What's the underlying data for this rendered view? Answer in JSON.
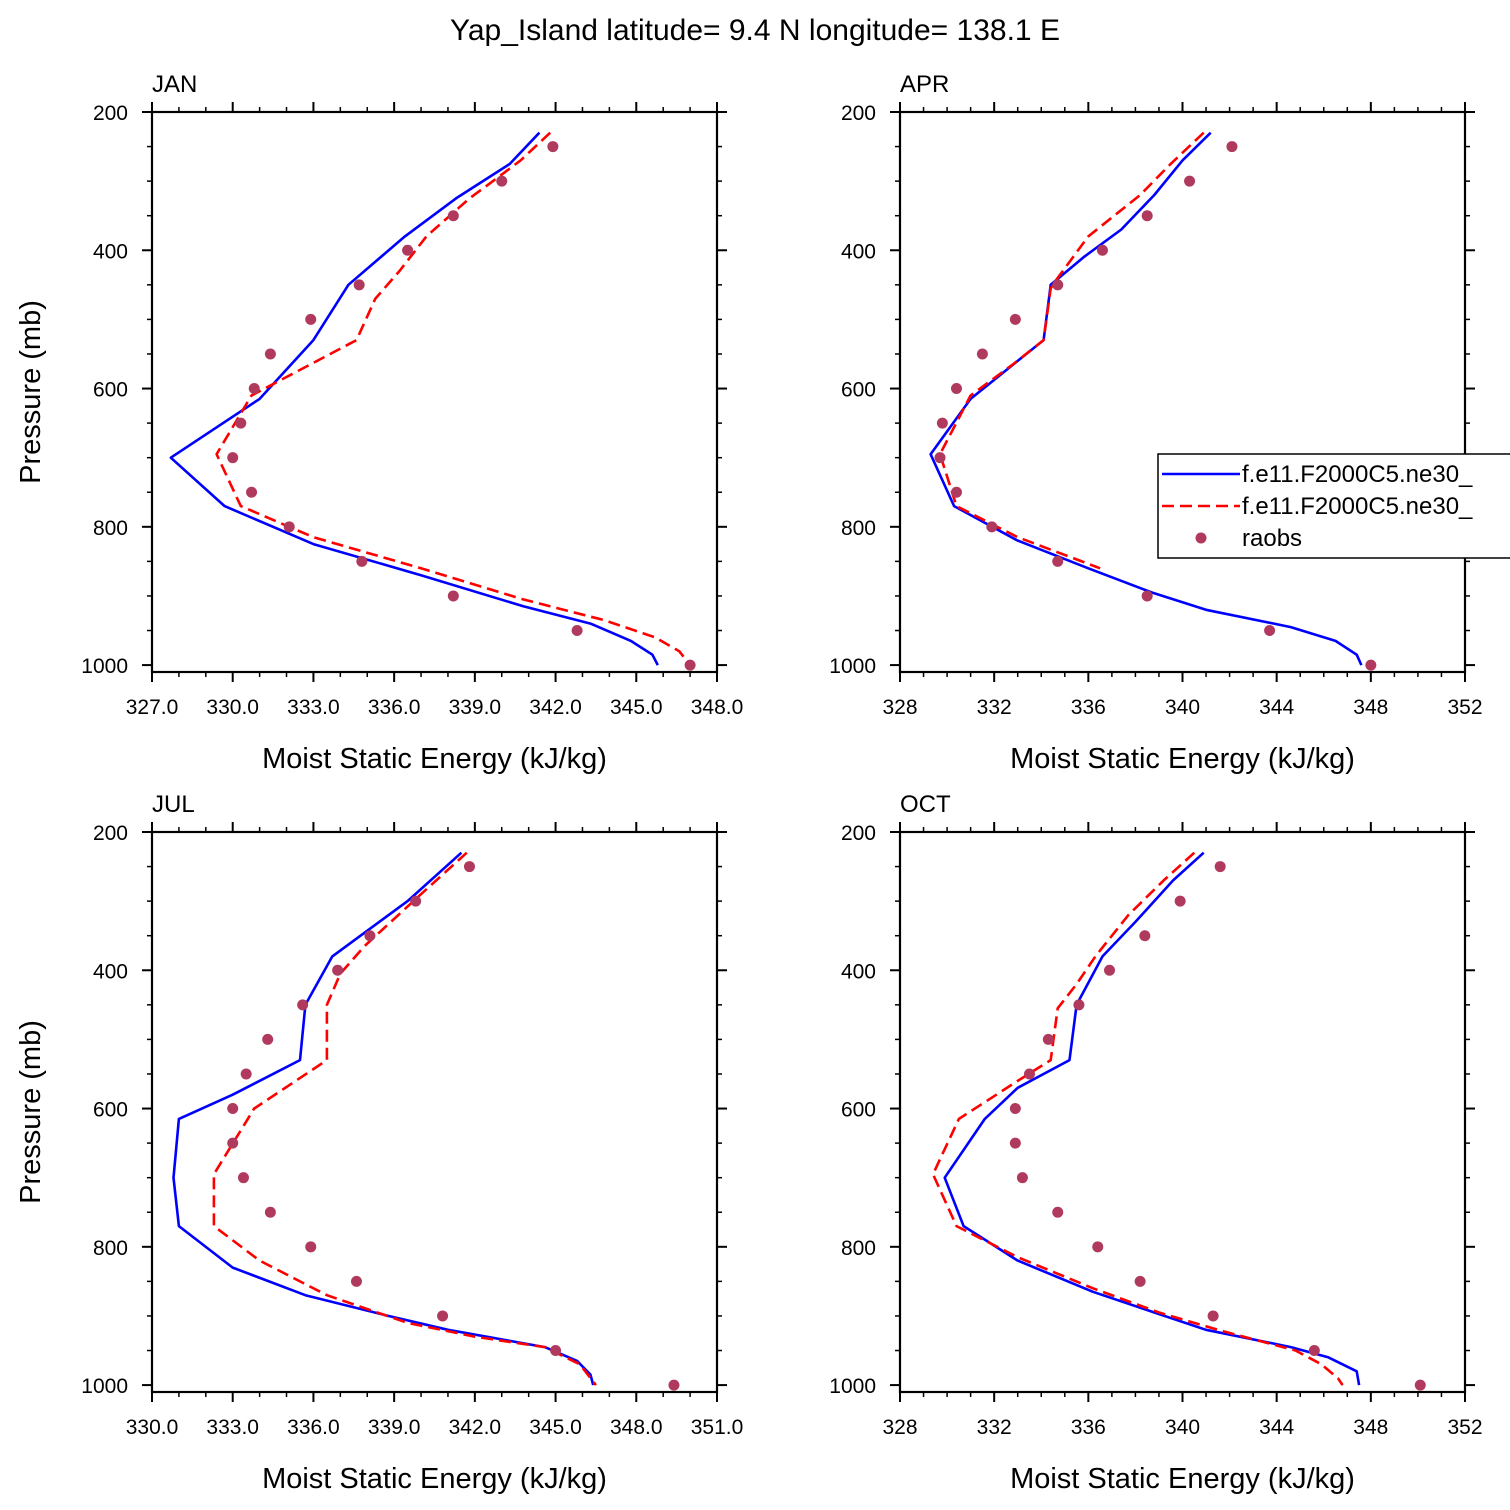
{
  "title": "Yap_Island  latitude= 9.4 N longitude= 138.1 E",
  "legend": {
    "entries": [
      {
        "label": "f.e11.F2000C5.ne30_",
        "color": "#0000ff",
        "style": "solid"
      },
      {
        "label": "f.e11.F2000C5.ne30_",
        "color": "#ff0000",
        "style": "dashed"
      },
      {
        "label": "raobs",
        "color": "#b03a5e",
        "style": "dot"
      }
    ],
    "panel": "APR",
    "placement": "middle-right"
  },
  "chart_data": [
    {
      "type": "line",
      "panel_label": "JAN",
      "xlabel": "Moist Static Energy (kJ/kg)",
      "ylabel": "Pressure (mb)",
      "xlim": [
        327,
        348
      ],
      "xticks": [
        "327.0",
        "330.0",
        "333.0",
        "336.0",
        "339.0",
        "342.0",
        "345.0",
        "348.0"
      ],
      "ylim": [
        200,
        1010
      ],
      "yticks": [
        "200",
        "400",
        "600",
        "800",
        "1000"
      ],
      "y_inverted": true,
      "series": [
        {
          "points": [
            [
              341.4,
              230
            ],
            [
              340.3,
              275
            ],
            [
              338.3,
              325
            ],
            [
              336.4,
              380
            ],
            [
              334.3,
              450
            ],
            [
              333.0,
              530
            ],
            [
              331.0,
              615
            ],
            [
              327.7,
              700
            ],
            [
              329.7,
              770
            ],
            [
              333.0,
              825
            ],
            [
              337.0,
              870
            ],
            [
              340.8,
              915
            ],
            [
              343.3,
              940
            ],
            [
              344.8,
              965
            ],
            [
              345.6,
              985
            ],
            [
              345.8,
              1000
            ]
          ]
        },
        {
          "points": [
            [
              341.8,
              230
            ],
            [
              340.7,
              270
            ],
            [
              339.5,
              305
            ],
            [
              338.8,
              325
            ],
            [
              337.2,
              380
            ],
            [
              336.2,
              430
            ],
            [
              335.3,
              470
            ],
            [
              334.6,
              530
            ],
            [
              330.7,
              610
            ],
            [
              329.4,
              695
            ],
            [
              330.3,
              770
            ],
            [
              333.0,
              815
            ],
            [
              337.0,
              860
            ],
            [
              340.8,
              905
            ],
            [
              343.8,
              935
            ],
            [
              345.7,
              960
            ],
            [
              346.6,
              980
            ],
            [
              347.0,
              1000
            ]
          ]
        },
        {
          "points": [
            [
              341.9,
              250
            ],
            [
              340.0,
              300
            ],
            [
              338.2,
              350
            ],
            [
              336.5,
              400
            ],
            [
              334.7,
              450
            ],
            [
              332.9,
              500
            ],
            [
              331.4,
              550
            ],
            [
              330.8,
              600
            ],
            [
              330.3,
              650
            ],
            [
              330.0,
              700
            ],
            [
              330.7,
              750
            ],
            [
              332.1,
              800
            ],
            [
              334.8,
              850
            ],
            [
              338.2,
              900
            ],
            [
              342.8,
              950
            ],
            [
              347.0,
              1000
            ]
          ]
        }
      ]
    },
    {
      "type": "line",
      "panel_label": "APR",
      "xlabel": "Moist Static Energy (kJ/kg)",
      "ylabel": "",
      "xlim": [
        328,
        352
      ],
      "xticks": [
        "328",
        "332",
        "336",
        "340",
        "344",
        "348",
        "352"
      ],
      "ylim": [
        200,
        1010
      ],
      "yticks": [
        "200",
        "400",
        "600",
        "800",
        "1000"
      ],
      "y_inverted": true,
      "series": [
        {
          "points": [
            [
              341.2,
              230
            ],
            [
              340.0,
              270
            ],
            [
              338.8,
              320
            ],
            [
              337.4,
              370
            ],
            [
              335.8,
              410
            ],
            [
              334.4,
              450
            ],
            [
              334.1,
              530
            ],
            [
              333.0,
              560
            ],
            [
              331.0,
              615
            ],
            [
              329.3,
              695
            ],
            [
              330.3,
              770
            ],
            [
              333.0,
              820
            ],
            [
              336.0,
              860
            ],
            [
              338.7,
              895
            ],
            [
              341.0,
              920
            ],
            [
              344.6,
              945
            ],
            [
              346.5,
              965
            ],
            [
              347.4,
              985
            ],
            [
              347.6,
              1000
            ]
          ]
        },
        {
          "points": [
            [
              340.9,
              230
            ],
            [
              339.5,
              275
            ],
            [
              338.2,
              320
            ],
            [
              336.0,
              380
            ],
            [
              334.7,
              440
            ],
            [
              334.4,
              455
            ],
            [
              334.1,
              530
            ],
            [
              332.8,
              565
            ],
            [
              331.0,
              610
            ],
            [
              329.7,
              695
            ],
            [
              330.4,
              770
            ],
            [
              333.0,
              815
            ],
            [
              336.5,
              860
            ]
          ]
        },
        {
          "points": [
            [
              342.1,
              250
            ],
            [
              340.3,
              300
            ],
            [
              338.5,
              350
            ],
            [
              336.6,
              400
            ],
            [
              334.7,
              450
            ],
            [
              332.9,
              500
            ],
            [
              331.5,
              550
            ],
            [
              330.4,
              600
            ],
            [
              329.8,
              650
            ],
            [
              329.7,
              700
            ],
            [
              330.4,
              750
            ],
            [
              331.9,
              800
            ],
            [
              334.7,
              850
            ],
            [
              338.5,
              900
            ],
            [
              343.7,
              950
            ],
            [
              348.0,
              1000
            ]
          ]
        }
      ]
    },
    {
      "type": "line",
      "panel_label": "JUL",
      "xlabel": "Moist Static Energy (kJ/kg)",
      "ylabel": "Pressure (mb)",
      "xlim": [
        330,
        351
      ],
      "xticks": [
        "330.0",
        "333.0",
        "336.0",
        "339.0",
        "342.0",
        "345.0",
        "348.0",
        "351.0"
      ],
      "ylim": [
        200,
        1010
      ],
      "yticks": [
        "200",
        "400",
        "600",
        "800",
        "1000"
      ],
      "y_inverted": true,
      "series": [
        {
          "points": [
            [
              341.5,
              230
            ],
            [
              339.5,
              300
            ],
            [
              336.7,
              380
            ],
            [
              335.7,
              450
            ],
            [
              335.5,
              530
            ],
            [
              333.0,
              580
            ],
            [
              331.0,
              615
            ],
            [
              330.8,
              700
            ],
            [
              331.0,
              770
            ],
            [
              333.0,
              830
            ],
            [
              335.7,
              870
            ],
            [
              338.8,
              900
            ],
            [
              341.0,
              920
            ],
            [
              344.6,
              945
            ],
            [
              345.8,
              965
            ],
            [
              346.3,
              985
            ],
            [
              346.4,
              1000
            ]
          ]
        },
        {
          "points": [
            [
              341.7,
              230
            ],
            [
              340.0,
              290
            ],
            [
              337.9,
              365
            ],
            [
              337.0,
              405
            ],
            [
              336.5,
              450
            ],
            [
              336.5,
              530
            ],
            [
              333.8,
              600
            ],
            [
              332.3,
              695
            ],
            [
              332.3,
              770
            ],
            [
              334.0,
              820
            ],
            [
              336.5,
              870
            ],
            [
              339.5,
              910
            ],
            [
              342.0,
              930
            ],
            [
              344.6,
              945
            ],
            [
              345.9,
              970
            ],
            [
              346.5,
              1000
            ]
          ]
        },
        {
          "points": [
            [
              341.8,
              250
            ],
            [
              339.8,
              300
            ],
            [
              338.1,
              350
            ],
            [
              336.9,
              400
            ],
            [
              335.6,
              450
            ],
            [
              334.3,
              500
            ],
            [
              333.5,
              550
            ],
            [
              333.0,
              600
            ],
            [
              333.0,
              650
            ],
            [
              333.4,
              700
            ],
            [
              334.4,
              750
            ],
            [
              335.9,
              800
            ],
            [
              337.6,
              850
            ],
            [
              340.8,
              900
            ],
            [
              345.0,
              950
            ],
            [
              349.4,
              1000
            ]
          ]
        }
      ]
    },
    {
      "type": "line",
      "panel_label": "OCT",
      "xlabel": "Moist Static Energy (kJ/kg)",
      "ylabel": "",
      "xlim": [
        328,
        352
      ],
      "xticks": [
        "328",
        "332",
        "336",
        "340",
        "344",
        "348",
        "352"
      ],
      "ylim": [
        200,
        1010
      ],
      "yticks": [
        "200",
        "400",
        "600",
        "800",
        "1000"
      ],
      "y_inverted": true,
      "series": [
        {
          "points": [
            [
              340.9,
              230
            ],
            [
              339.6,
              270
            ],
            [
              338.0,
              330
            ],
            [
              336.6,
              380
            ],
            [
              335.5,
              450
            ],
            [
              335.2,
              530
            ],
            [
              333.0,
              570
            ],
            [
              331.6,
              615
            ],
            [
              329.9,
              700
            ],
            [
              330.7,
              770
            ],
            [
              333.0,
              820
            ],
            [
              336.2,
              865
            ],
            [
              338.8,
              895
            ],
            [
              341.0,
              920
            ],
            [
              344.6,
              945
            ],
            [
              346.2,
              960
            ],
            [
              347.4,
              980
            ],
            [
              347.5,
              1000
            ]
          ]
        },
        {
          "points": [
            [
              340.5,
              230
            ],
            [
              339.2,
              270
            ],
            [
              337.7,
              320
            ],
            [
              336.3,
              380
            ],
            [
              335.5,
              420
            ],
            [
              334.7,
              455
            ],
            [
              334.4,
              530
            ],
            [
              333.0,
              560
            ],
            [
              330.5,
              615
            ],
            [
              329.4,
              695
            ],
            [
              330.4,
              770
            ],
            [
              333.0,
              815
            ],
            [
              336.2,
              860
            ],
            [
              339.0,
              895
            ],
            [
              341.5,
              920
            ],
            [
              344.8,
              950
            ],
            [
              345.9,
              970
            ],
            [
              346.6,
              990
            ],
            [
              346.8,
              1000
            ]
          ]
        },
        {
          "points": [
            [
              341.6,
              250
            ],
            [
              339.9,
              300
            ],
            [
              338.4,
              350
            ],
            [
              336.9,
              400
            ],
            [
              335.6,
              450
            ],
            [
              334.3,
              500
            ],
            [
              333.5,
              550
            ],
            [
              332.9,
              600
            ],
            [
              332.9,
              650
            ],
            [
              333.2,
              700
            ],
            [
              334.7,
              750
            ],
            [
              336.4,
              800
            ],
            [
              338.2,
              850
            ],
            [
              341.3,
              900
            ],
            [
              345.6,
              950
            ],
            [
              350.1,
              1000
            ]
          ]
        }
      ]
    }
  ]
}
